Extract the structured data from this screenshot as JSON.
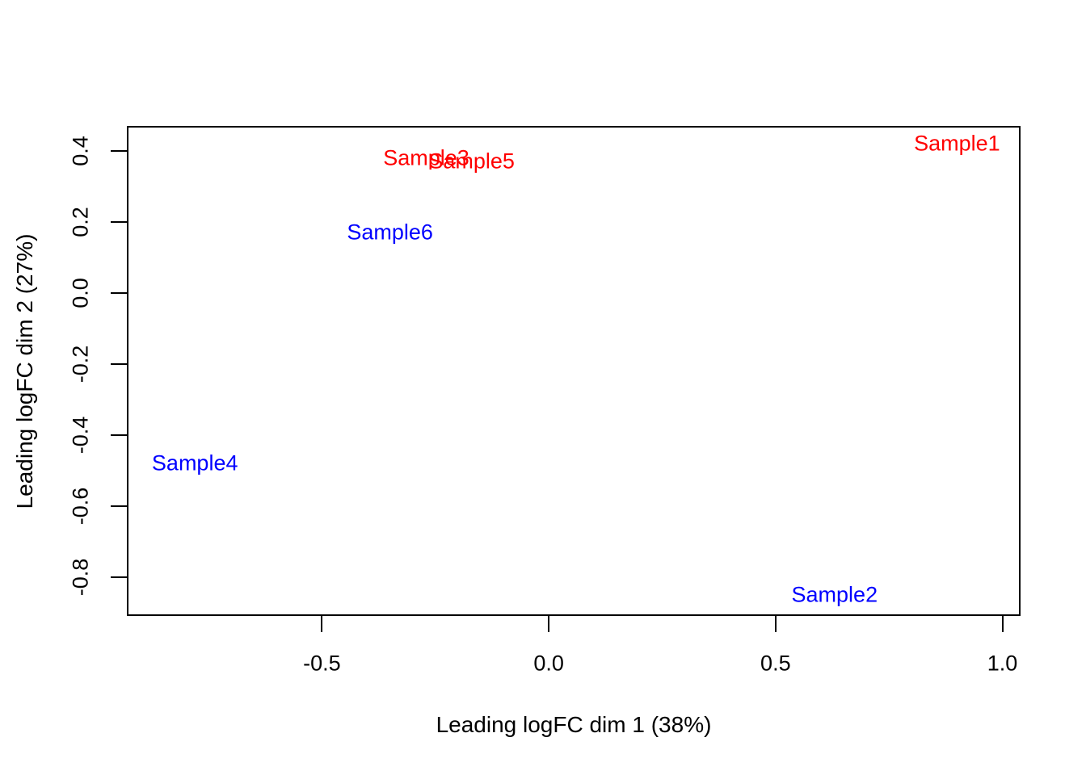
{
  "chart_data": {
    "type": "scatter",
    "title": "",
    "xlabel": "Leading logFC dim 1 (38%)",
    "ylabel": "Leading logFC dim 2 (27%)",
    "xlim": [
      -0.93,
      1.04
    ],
    "ylim": [
      -0.91,
      0.47
    ],
    "xticks": [
      -0.5,
      0.0,
      0.5,
      1.0
    ],
    "yticks": [
      0.4,
      0.2,
      0.0,
      -0.2,
      -0.4,
      -0.6,
      -0.8
    ],
    "grid": false,
    "legend": false,
    "point_style": "text-labels",
    "colors": {
      "group_red": "#FF0000",
      "group_blue": "#0000FF",
      "axis": "#000000"
    },
    "points": [
      {
        "label": "Sample1",
        "x": 0.9,
        "y": 0.42,
        "color": "#FF0000"
      },
      {
        "label": "Sample2",
        "x": 0.63,
        "y": -0.85,
        "color": "#0000FF"
      },
      {
        "label": "Sample3",
        "x": -0.27,
        "y": 0.38,
        "color": "#FF0000"
      },
      {
        "label": "Sample4",
        "x": -0.78,
        "y": -0.48,
        "color": "#0000FF"
      },
      {
        "label": "Sample5",
        "x": -0.17,
        "y": 0.37,
        "color": "#FF0000"
      },
      {
        "label": "Sample6",
        "x": -0.35,
        "y": 0.17,
        "color": "#0000FF"
      }
    ]
  }
}
